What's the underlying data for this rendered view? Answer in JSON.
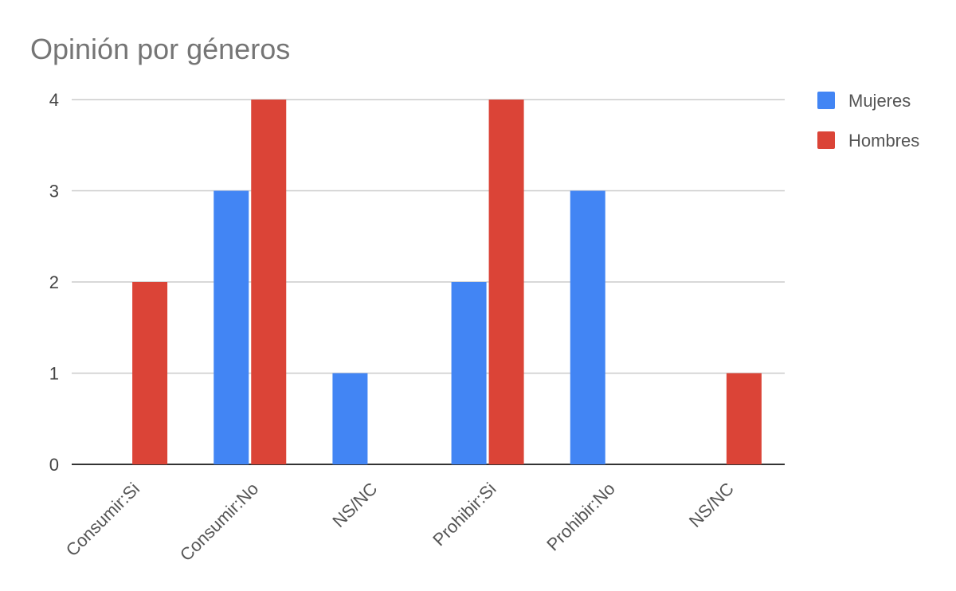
{
  "chart_data": {
    "type": "bar",
    "title": "Opinión por géneros",
    "categories": [
      "Consumir:Si",
      "Consumir:No",
      "NS/NC",
      "Prohibir:Si",
      "Prohibir:No",
      "NS/NC"
    ],
    "series": [
      {
        "name": "Mujeres",
        "color": "#4285f4",
        "values": [
          0,
          3,
          1,
          2,
          3,
          0
        ]
      },
      {
        "name": "Hombres",
        "color": "#db4437",
        "values": [
          2,
          4,
          0,
          4,
          0,
          1
        ]
      }
    ],
    "y_ticks": [
      "0",
      "1",
      "2",
      "3",
      "4"
    ],
    "ylim": [
      0,
      4
    ],
    "xlabel": "",
    "ylabel": "",
    "grid": true,
    "legend_position": "right"
  }
}
